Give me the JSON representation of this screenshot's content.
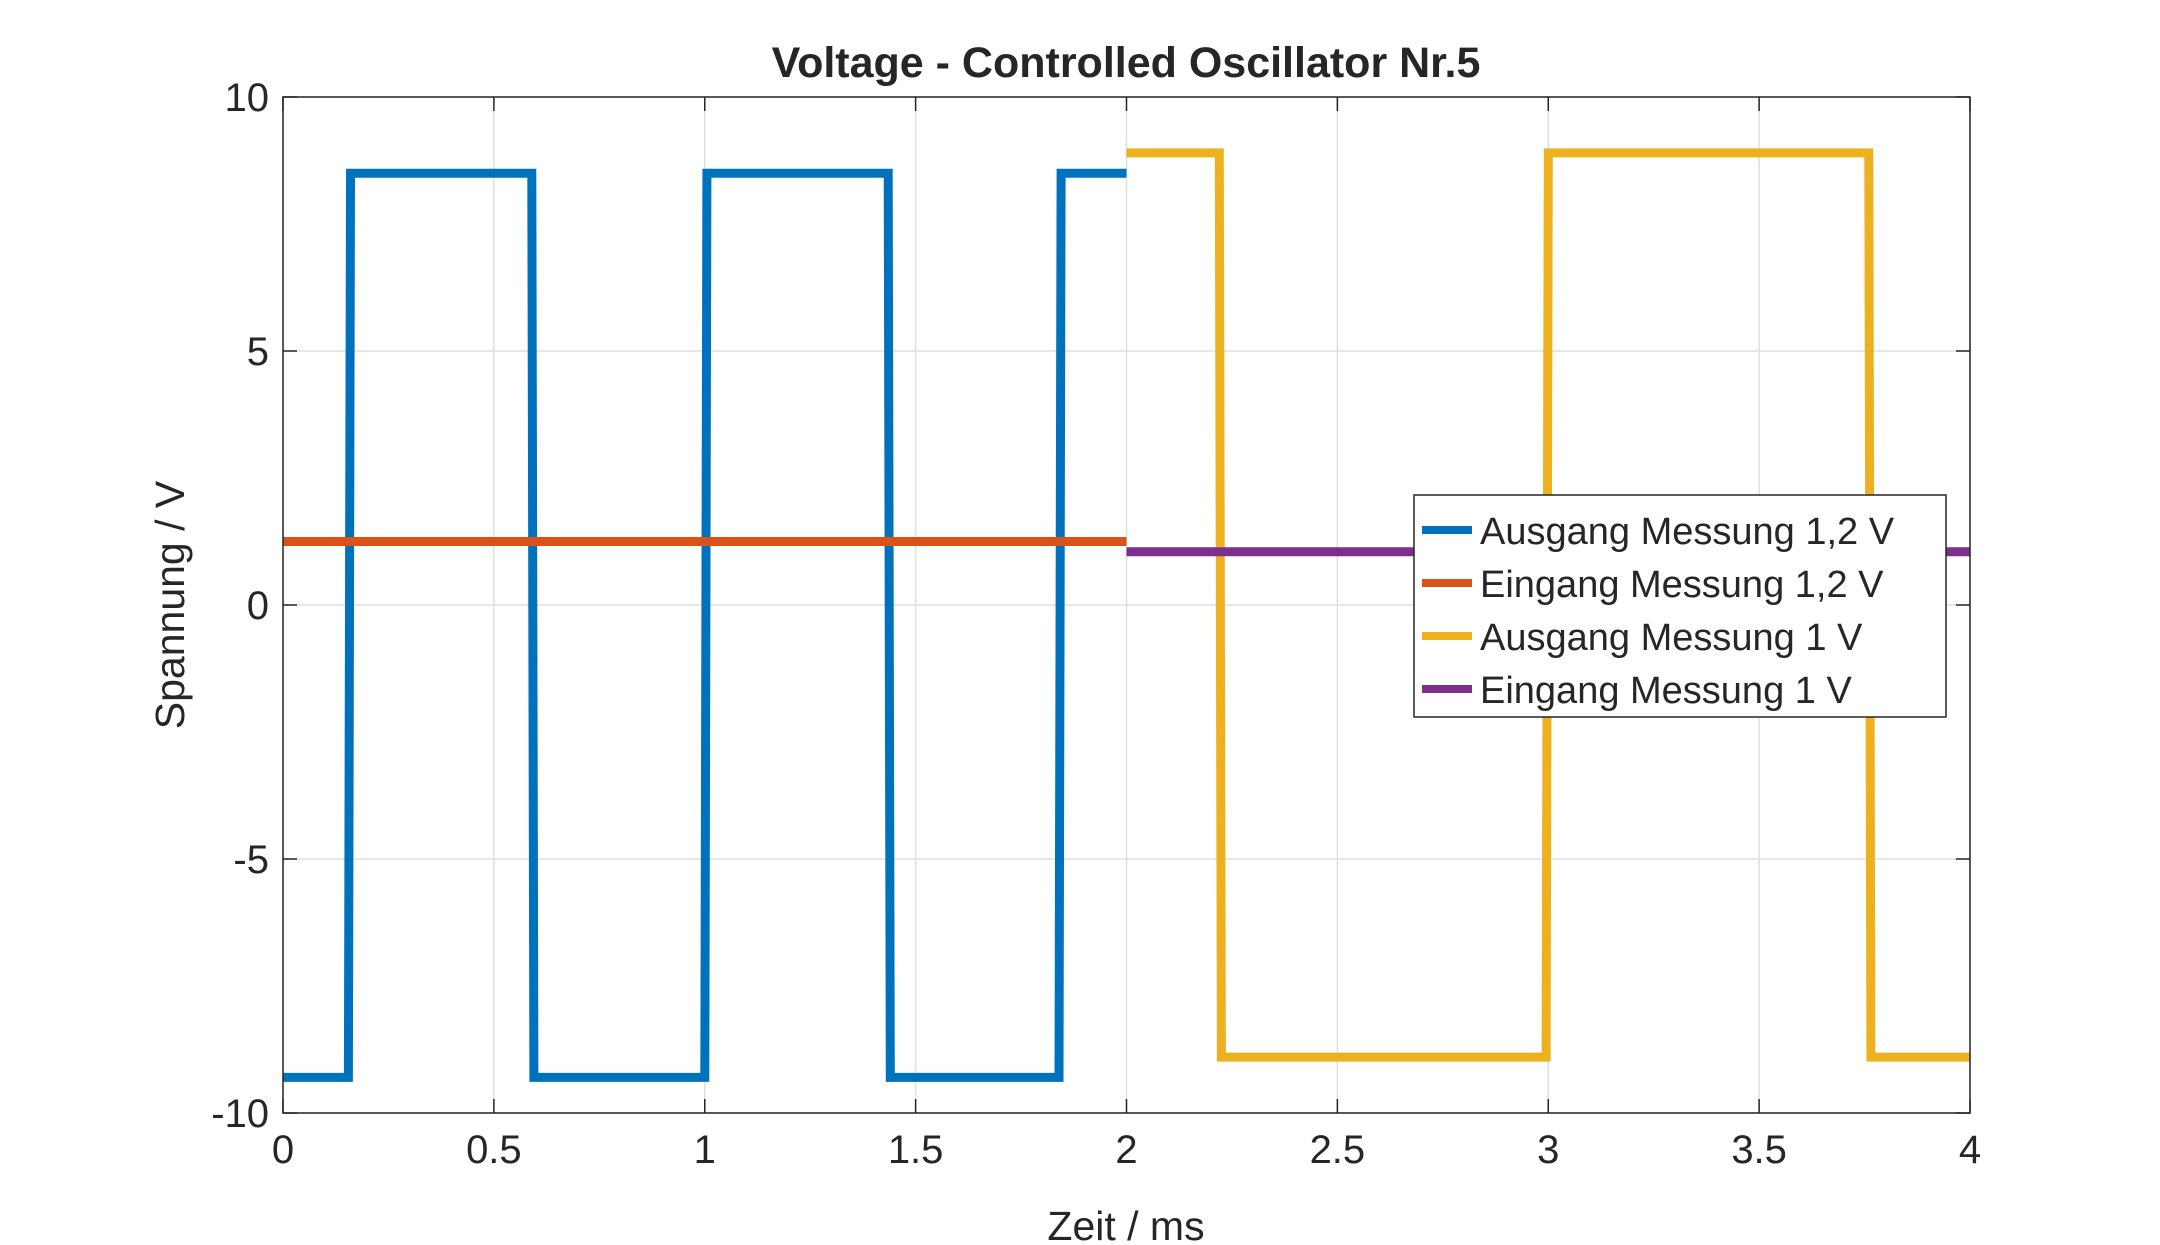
{
  "chart_data": {
    "type": "line",
    "title": "Voltage - Controlled Oscillator Nr.5",
    "xlabel": "Zeit / ms",
    "ylabel": "Spannung / V",
    "xlim": [
      0,
      4
    ],
    "ylim": [
      -10,
      10
    ],
    "xticks": [
      0,
      0.5,
      1,
      1.5,
      2,
      2.5,
      3,
      3.5,
      4
    ],
    "xtick_labels": [
      "0",
      "0.5",
      "1",
      "1.5",
      "2",
      "2.5",
      "3",
      "3.5",
      "4"
    ],
    "yticks": [
      -10,
      -5,
      0,
      5,
      10
    ],
    "ytick_labels": [
      "-10",
      "-5",
      "0",
      "5",
      "10"
    ],
    "grid": true,
    "legend_position": "right",
    "series": [
      {
        "name": "Ausgang Messung 1,2 V",
        "color": "#0072BD",
        "x": [
          0,
          0.155,
          0.16,
          0.59,
          0.595,
          1.0,
          1.005,
          1.435,
          1.44,
          1.84,
          1.845,
          2.0
        ],
        "y": [
          -9.3,
          -9.3,
          8.5,
          8.5,
          -9.3,
          -9.3,
          8.5,
          8.5,
          -9.3,
          -9.3,
          8.5,
          8.5
        ]
      },
      {
        "name": "Eingang Messung 1,2 V",
        "color": "#D95319",
        "x": [
          0,
          2.0
        ],
        "y": [
          1.25,
          1.25
        ]
      },
      {
        "name": "Ausgang Messung 1 V",
        "color": "#EDB120",
        "x": [
          2.0,
          2.22,
          2.225,
          2.995,
          3.0,
          3.76,
          3.765,
          4.0
        ],
        "y": [
          8.9,
          8.9,
          -8.9,
          -8.9,
          8.9,
          8.9,
          -8.9,
          -8.9
        ]
      },
      {
        "name": "Eingang Messung 1 V",
        "color": "#7E2F8E",
        "x": [
          2.0,
          4.0
        ],
        "y": [
          1.05,
          1.05
        ]
      }
    ]
  }
}
